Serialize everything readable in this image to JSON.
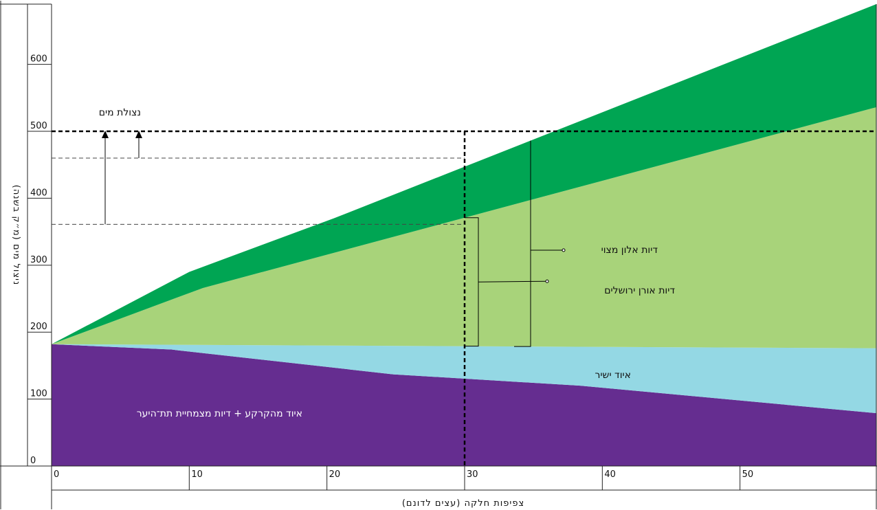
{
  "chart_data": {
    "type": "area",
    "ylabel": "ניצול מים (מ״ק בשנה)",
    "xlabel": "צפיפות חלקה (עצים לדונם)",
    "ylim": [
      0,
      690
    ],
    "xlim": [
      0,
      59.9
    ],
    "yticks": [
      "0",
      "100",
      "200",
      "300",
      "400",
      "500",
      "600"
    ],
    "xticks": [
      "0",
      "10",
      "20",
      "30",
      "40",
      "50"
    ],
    "series": [
      {
        "name": "איוד מהקרקע + דיות מצמחיית תת־היער",
        "color": "#652d90",
        "x": [
          0,
          8.7,
          24.8,
          38.4,
          59.9
        ],
        "y": [
          182,
          174,
          137,
          120,
          79
        ]
      },
      {
        "name": "איוד ישיר",
        "color": "#94d8e4",
        "x": [
          0,
          59.9
        ],
        "y": [
          182,
          176
        ]
      },
      {
        "name": "דיות אורן ירושלים",
        "color": "#a8d37a",
        "x": [
          0,
          11,
          59.9
        ],
        "y": [
          182,
          266,
          536
        ]
      },
      {
        "name": "דיות אלון מצוי",
        "color": "#00a553",
        "x": [
          0,
          10,
          20.5,
          59.9
        ],
        "y": [
          182,
          290,
          370,
          690
        ]
      }
    ],
    "reference_lines": {
      "total_level": 500,
      "mid_level": 460,
      "low_level": 361,
      "density_marker": 30
    },
    "annotations": {
      "interception": "נצולת מים",
      "direct_evaporation": "איוד ישיר",
      "pine": "דיות אורן ירושלים",
      "oak": "דיות אלון מצוי",
      "soil": "איוד מהקרקע + דיות מצמחיית תת־היער"
    }
  }
}
